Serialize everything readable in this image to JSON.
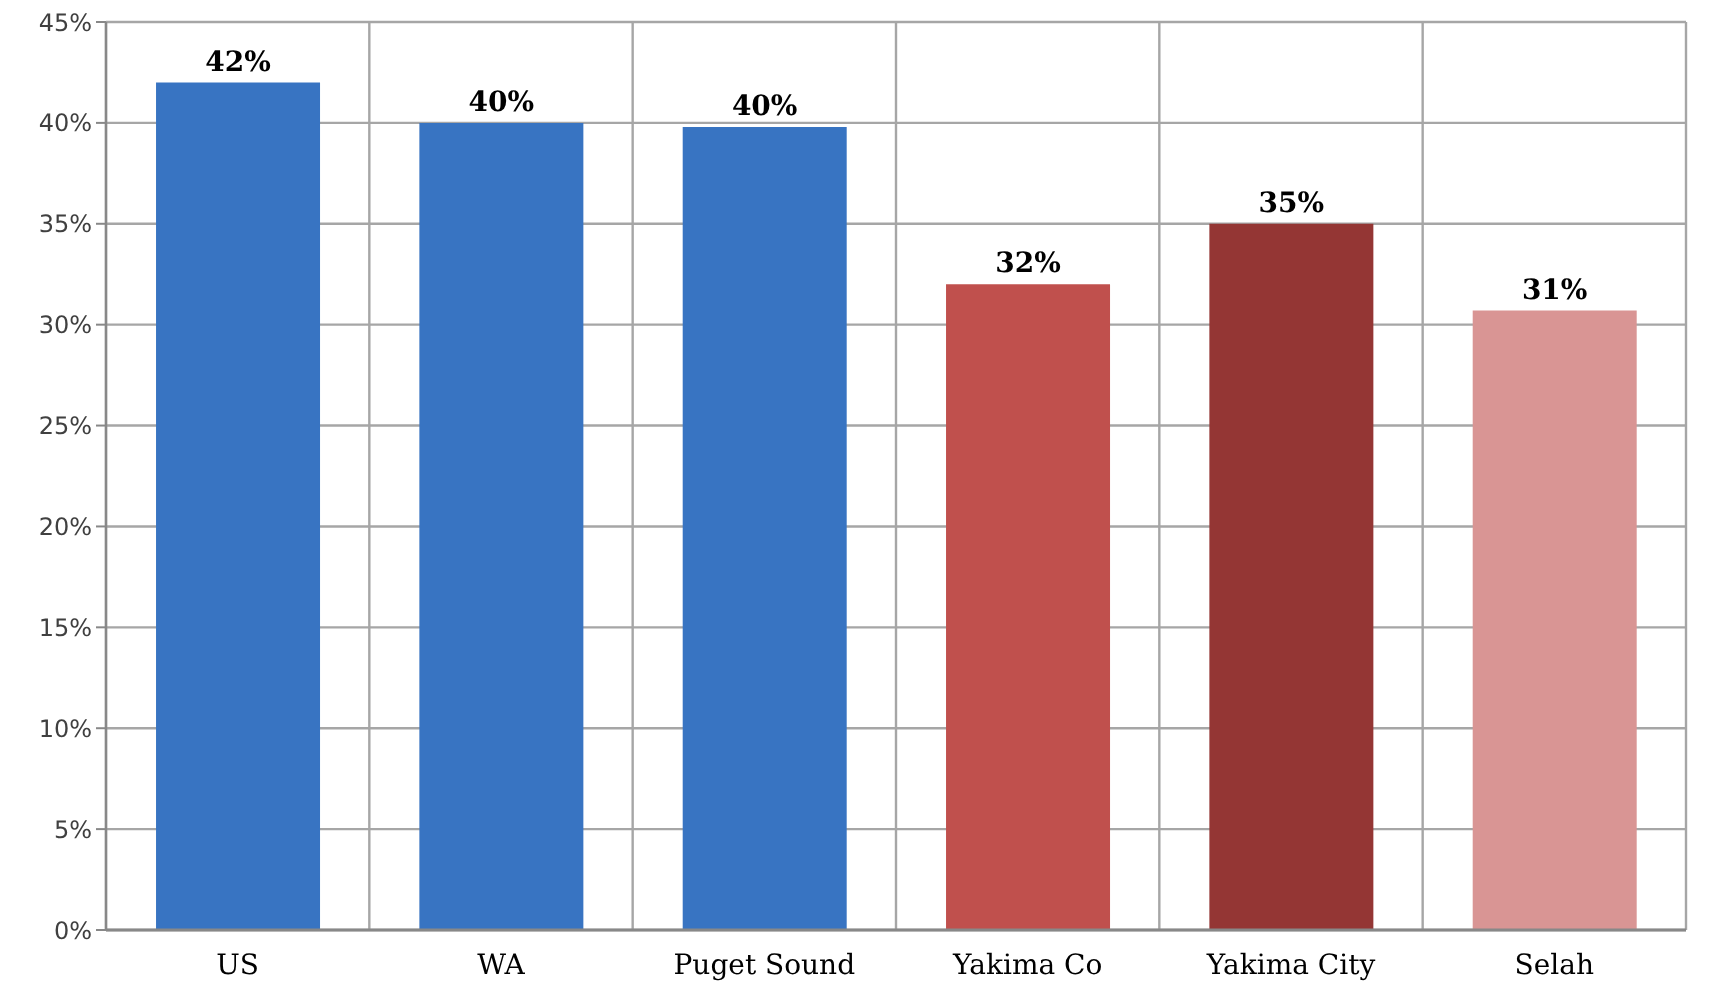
{
  "chart_data": {
    "type": "bar",
    "categories": [
      "US",
      "WA",
      "Puget Sound",
      "Yakima Co",
      "Yakima City",
      "Selah"
    ],
    "values": [
      42,
      40,
      39.8,
      32,
      35,
      30.7
    ],
    "colors": [
      "#3874c2",
      "#3874c2",
      "#3874c2",
      "#c0504d",
      "#943634",
      "#d99594"
    ],
    "value_labels": [
      "42%",
      "40%",
      "40%",
      "32%",
      "35%",
      "31%"
    ],
    "ylim": [
      0,
      45
    ],
    "yticks": [
      {
        "value": 0,
        "label": "0%"
      },
      {
        "value": 5,
        "label": "5%"
      },
      {
        "value": 10,
        "label": "10%"
      },
      {
        "value": 15,
        "label": "15%"
      },
      {
        "value": 20,
        "label": "20%"
      },
      {
        "value": 25,
        "label": "25%"
      },
      {
        "value": 30,
        "label": "30%"
      },
      {
        "value": 35,
        "label": "35%"
      },
      {
        "value": 40,
        "label": "40%"
      },
      {
        "value": 45,
        "label": "45%"
      }
    ],
    "grid": true
  }
}
